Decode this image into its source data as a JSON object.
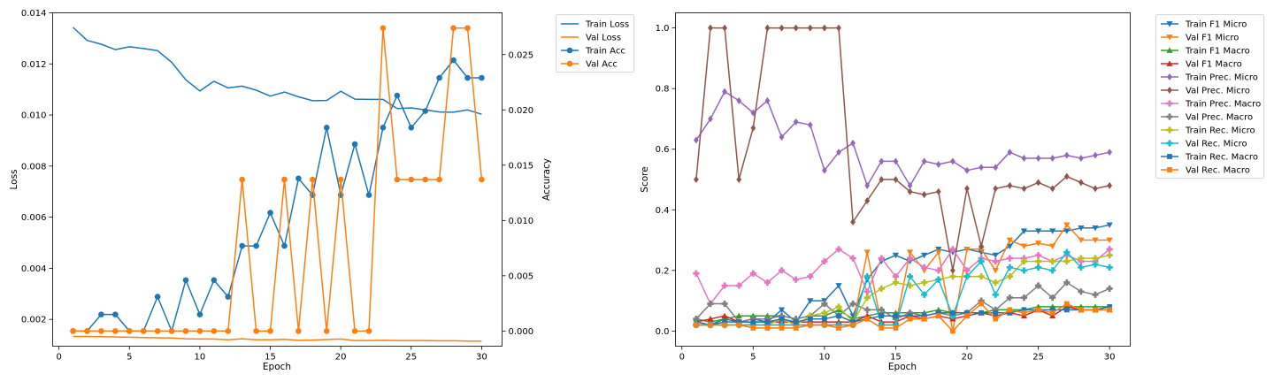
{
  "chart_data": [
    {
      "type": "line",
      "xlabel": "Epoch",
      "ylabel": "Loss",
      "y2label": "Accuracy",
      "xlim": [
        -0.45,
        31.45
      ],
      "xticks": [
        0,
        5,
        10,
        15,
        20,
        25,
        30
      ],
      "ylim": [
        0.00095,
        0.014
      ],
      "yticks": [
        0.002,
        0.004,
        0.006,
        0.008,
        0.01,
        0.012,
        0.014
      ],
      "ytick_labels": [
        "0.002",
        "0.004",
        "0.006",
        "0.008",
        "0.010",
        "0.012",
        "0.014"
      ],
      "y2lim": [
        -0.00137,
        0.02878
      ],
      "y2ticks": [
        0,
        0.005,
        0.01,
        0.015,
        0.02,
        0.025
      ],
      "y2tick_labels": [
        "0.000",
        "0.005",
        "0.010",
        "0.015",
        "0.020",
        "0.025"
      ],
      "legend_position": "outside-right",
      "grid": false,
      "x": [
        1,
        2,
        3,
        4,
        5,
        6,
        7,
        8,
        9,
        10,
        11,
        12,
        13,
        14,
        15,
        16,
        17,
        18,
        19,
        20,
        21,
        22,
        23,
        24,
        25,
        26,
        27,
        28,
        29,
        30
      ],
      "series": [
        {
          "name": "Train Loss",
          "axis": "left",
          "color": "#1f77b4",
          "marker": "none",
          "values": [
            0.01343,
            0.01292,
            0.01277,
            0.01256,
            0.01267,
            0.0126,
            0.01252,
            0.01206,
            0.01138,
            0.01094,
            0.01132,
            0.01106,
            0.01113,
            0.01097,
            0.01074,
            0.0109,
            0.01071,
            0.01056,
            0.01057,
            0.01093,
            0.01062,
            0.01061,
            0.01061,
            0.01025,
            0.01028,
            0.0102,
            0.01012,
            0.01011,
            0.0102,
            0.01003
          ]
        },
        {
          "name": "Val Loss",
          "axis": "left",
          "color": "#ff7f0e",
          "marker": "none",
          "values": [
            0.00133,
            0.00133,
            0.00132,
            0.00131,
            0.0013,
            0.00129,
            0.00128,
            0.00127,
            0.00124,
            0.00123,
            0.00123,
            0.0012,
            0.00124,
            0.0012,
            0.0012,
            0.00122,
            0.00118,
            0.00119,
            0.00121,
            0.00123,
            0.00117,
            0.00117,
            0.00118,
            0.00117,
            0.00117,
            0.00117,
            0.00116,
            0.00116,
            0.00115,
            0.00115
          ]
        },
        {
          "name": "Train Acc",
          "axis": "right",
          "color": "#1f77b4",
          "marker": "circle",
          "values": [
            0.0,
            0.0,
            0.0015,
            0.0015,
            0.0,
            0.0,
            0.0031,
            0.0,
            0.0046,
            0.0015,
            0.0046,
            0.0031,
            0.0077,
            0.0077,
            0.0107,
            0.0077,
            0.0138,
            0.0123,
            0.0184,
            0.0123,
            0.0169,
            0.0123,
            0.0184,
            0.0213,
            0.0184,
            0.0199,
            0.0229,
            0.0245,
            0.0229,
            0.0229
          ]
        },
        {
          "name": "Val Acc",
          "axis": "right",
          "color": "#ff7f0e",
          "marker": "circle",
          "values": [
            0.0,
            0.0,
            0.0,
            0.0,
            0.0,
            0.0,
            0.0,
            0.0,
            0.0,
            0.0,
            0.0,
            0.0,
            0.0137,
            0.0,
            0.0,
            0.0137,
            0.0,
            0.0137,
            0.0,
            0.0137,
            0.0,
            0.0,
            0.0274,
            0.0137,
            0.0137,
            0.0137,
            0.0137,
            0.0274,
            0.0274,
            0.0137
          ]
        }
      ]
    },
    {
      "type": "line",
      "xlabel": "Epoch",
      "ylabel": "Score",
      "xlim": [
        -0.45,
        31.45
      ],
      "xticks": [
        0,
        5,
        10,
        15,
        20,
        25,
        30
      ],
      "ylim": [
        -0.05,
        1.05
      ],
      "yticks": [
        0.0,
        0.2,
        0.4,
        0.6,
        0.8,
        1.0
      ],
      "ytick_labels": [
        "0.0",
        "0.2",
        "0.4",
        "0.6",
        "0.8",
        "1.0"
      ],
      "legend_position": "outside-right",
      "grid": false,
      "x": [
        1,
        2,
        3,
        4,
        5,
        6,
        7,
        8,
        9,
        10,
        11,
        12,
        13,
        14,
        15,
        16,
        17,
        18,
        19,
        20,
        21,
        22,
        23,
        24,
        25,
        26,
        27,
        28,
        29,
        30
      ],
      "series": [
        {
          "name": "Train F1 Micro",
          "color": "#1f77b4",
          "marker": "tri-down",
          "values": [
            0.03,
            0.02,
            0.04,
            0.03,
            0.04,
            0.03,
            0.07,
            0.03,
            0.1,
            0.1,
            0.15,
            0.05,
            0.17,
            0.23,
            0.25,
            0.23,
            0.25,
            0.27,
            0.26,
            0.27,
            0.26,
            0.25,
            0.28,
            0.33,
            0.33,
            0.33,
            0.33,
            0.34,
            0.34,
            0.35
          ]
        },
        {
          "name": "Val F1 Micro",
          "color": "#ff7f0e",
          "marker": "tri-down",
          "values": [
            0.02,
            0.02,
            0.02,
            0.02,
            0.02,
            0.02,
            0.02,
            0.02,
            0.02,
            0.02,
            0.02,
            0.02,
            0.26,
            0.02,
            0.02,
            0.26,
            0.2,
            0.26,
            0.0,
            0.27,
            0.27,
            0.2,
            0.3,
            0.28,
            0.29,
            0.28,
            0.35,
            0.3,
            0.3,
            0.3
          ]
        },
        {
          "name": "Train F1 Macro",
          "color": "#2ca02c",
          "marker": "tri-up",
          "values": [
            0.04,
            0.03,
            0.04,
            0.05,
            0.05,
            0.05,
            0.05,
            0.04,
            0.05,
            0.05,
            0.07,
            0.04,
            0.05,
            0.06,
            0.06,
            0.06,
            0.06,
            0.07,
            0.06,
            0.06,
            0.06,
            0.07,
            0.07,
            0.07,
            0.08,
            0.08,
            0.08,
            0.08,
            0.08,
            0.08
          ]
        },
        {
          "name": "Val F1 Macro",
          "color": "#d62728",
          "marker": "tri-up",
          "values": [
            0.03,
            0.04,
            0.05,
            0.03,
            0.03,
            0.03,
            0.03,
            0.03,
            0.03,
            0.03,
            0.03,
            0.03,
            0.05,
            0.03,
            0.03,
            0.05,
            0.04,
            0.05,
            0.04,
            0.05,
            0.06,
            0.05,
            0.06,
            0.05,
            0.07,
            0.05,
            0.08,
            0.07,
            0.07,
            0.07
          ]
        },
        {
          "name": "Train Prec. Micro",
          "color": "#9467bd",
          "marker": "diamond",
          "values": [
            0.63,
            0.7,
            0.79,
            0.76,
            0.72,
            0.76,
            0.64,
            0.69,
            0.68,
            0.53,
            0.59,
            0.62,
            0.48,
            0.56,
            0.56,
            0.48,
            0.56,
            0.55,
            0.56,
            0.53,
            0.54,
            0.54,
            0.59,
            0.57,
            0.57,
            0.57,
            0.58,
            0.57,
            0.58,
            0.59
          ]
        },
        {
          "name": "Val Prec. Micro",
          "color": "#8c564b",
          "marker": "diamond",
          "values": [
            0.5,
            1.0,
            1.0,
            0.5,
            0.67,
            1.0,
            1.0,
            1.0,
            1.0,
            1.0,
            1.0,
            0.36,
            0.43,
            0.5,
            0.5,
            0.46,
            0.45,
            0.46,
            0.2,
            0.47,
            0.28,
            0.47,
            0.48,
            0.47,
            0.49,
            0.47,
            0.51,
            0.49,
            0.47,
            0.48
          ]
        },
        {
          "name": "Train Prec. Macro",
          "color": "#e377c2",
          "marker": "plus",
          "values": [
            0.19,
            0.09,
            0.15,
            0.15,
            0.19,
            0.16,
            0.2,
            0.17,
            0.18,
            0.23,
            0.27,
            0.24,
            0.13,
            0.24,
            0.18,
            0.24,
            0.21,
            0.2,
            0.27,
            0.2,
            0.24,
            0.23,
            0.24,
            0.24,
            0.25,
            0.23,
            0.25,
            0.23,
            0.23,
            0.27
          ]
        },
        {
          "name": "Val Prec. Macro",
          "color": "#7f7f7f",
          "marker": "plus",
          "values": [
            0.04,
            0.09,
            0.09,
            0.03,
            0.04,
            0.04,
            0.05,
            0.04,
            0.05,
            0.09,
            0.05,
            0.09,
            0.07,
            0.07,
            0.04,
            0.06,
            0.05,
            0.06,
            0.05,
            0.06,
            0.1,
            0.07,
            0.11,
            0.11,
            0.15,
            0.11,
            0.16,
            0.13,
            0.12,
            0.14
          ]
        },
        {
          "name": "Train Rec. Micro",
          "color": "#bcbd22",
          "marker": "plus",
          "values": [
            0.02,
            0.02,
            0.02,
            0.02,
            0.02,
            0.02,
            0.04,
            0.02,
            0.05,
            0.06,
            0.08,
            0.03,
            0.11,
            0.14,
            0.16,
            0.15,
            0.16,
            0.17,
            0.18,
            0.18,
            0.18,
            0.16,
            0.18,
            0.23,
            0.23,
            0.23,
            0.23,
            0.24,
            0.24,
            0.25
          ]
        },
        {
          "name": "Val Rec. Micro",
          "color": "#17becf",
          "marker": "plus",
          "values": [
            0.02,
            0.02,
            0.02,
            0.02,
            0.02,
            0.02,
            0.02,
            0.02,
            0.02,
            0.02,
            0.02,
            0.02,
            0.18,
            0.02,
            0.02,
            0.18,
            0.12,
            0.17,
            0.05,
            0.18,
            0.23,
            0.12,
            0.21,
            0.2,
            0.21,
            0.2,
            0.26,
            0.21,
            0.22,
            0.21
          ]
        },
        {
          "name": "Train Rec. Macro",
          "color": "#1f77b4",
          "marker": "square",
          "values": [
            0.02,
            0.02,
            0.03,
            0.03,
            0.03,
            0.03,
            0.04,
            0.03,
            0.04,
            0.04,
            0.05,
            0.03,
            0.04,
            0.05,
            0.05,
            0.05,
            0.05,
            0.06,
            0.06,
            0.06,
            0.06,
            0.06,
            0.06,
            0.07,
            0.07,
            0.07,
            0.07,
            0.07,
            0.07,
            0.08
          ]
        },
        {
          "name": "Val Rec. Macro",
          "color": "#ff7f0e",
          "marker": "square",
          "values": [
            0.02,
            0.02,
            0.02,
            0.02,
            0.01,
            0.01,
            0.01,
            0.01,
            0.02,
            0.02,
            0.01,
            0.02,
            0.04,
            0.01,
            0.01,
            0.04,
            0.04,
            0.05,
            0.0,
            0.05,
            0.09,
            0.04,
            0.07,
            0.06,
            0.07,
            0.06,
            0.09,
            0.07,
            0.07,
            0.07
          ]
        }
      ]
    }
  ]
}
